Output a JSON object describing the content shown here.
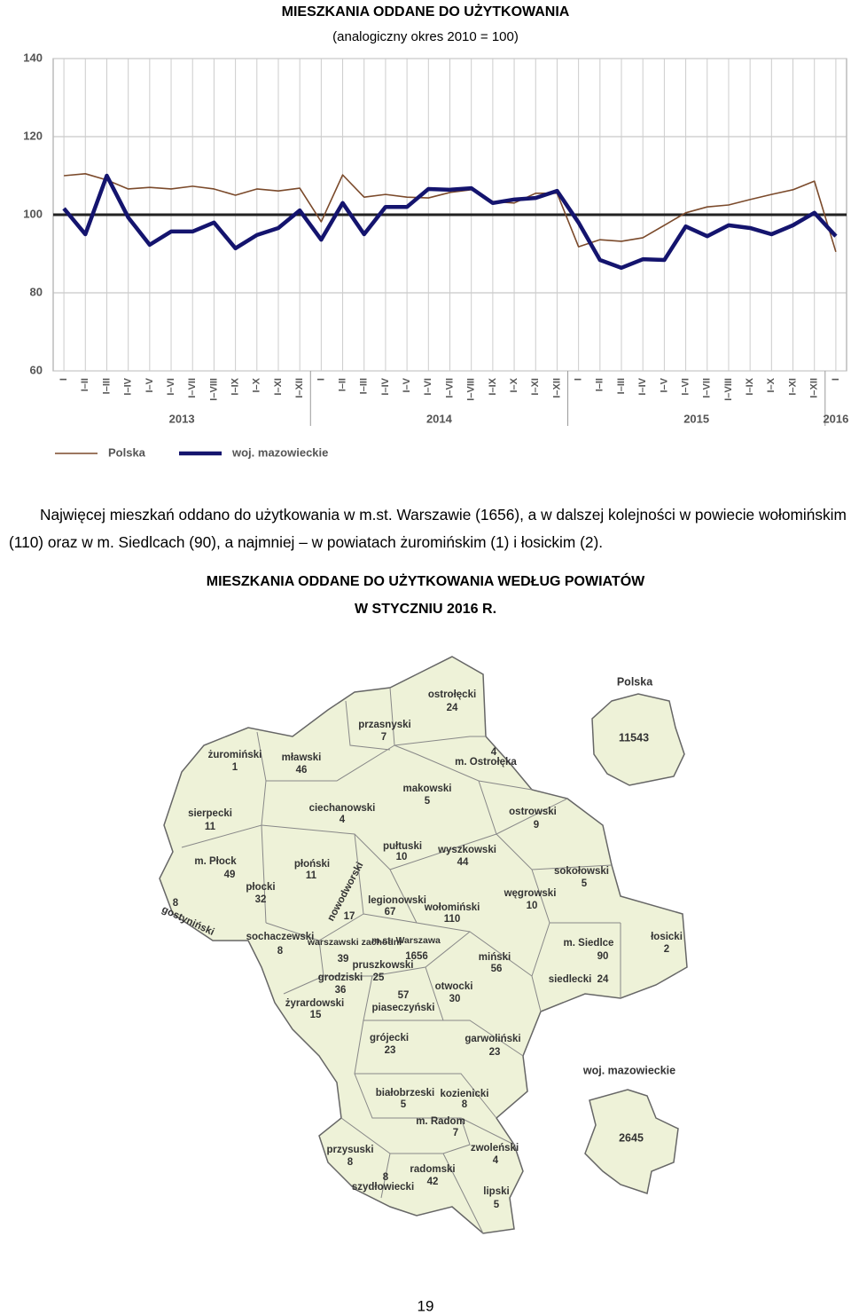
{
  "chart_data": {
    "type": "line",
    "title": "MIESZKANIA  ODDANE  DO  UŻYTKOWANIA",
    "subtitle": "(analogiczny okres 2010 = 100)",
    "categories": [
      "I",
      "I–II",
      "I–III",
      "I–IV",
      "I–V",
      "I–VI",
      "I–VII",
      "I–VIII",
      "I–IX",
      "I–X",
      "I–XI",
      "I–XII",
      "I",
      "I–II",
      "I–III",
      "I–IV",
      "I–V",
      "I–VI",
      "I–VII",
      "I–VIII",
      "I–IX",
      "I–X",
      "I–XI",
      "I–XII",
      "I",
      "I–II",
      "I–III",
      "I–IV",
      "I–V",
      "I–VI",
      "I–VII",
      "I–VIII",
      "I–IX",
      "I–X",
      "I–XI",
      "I–XII",
      "I"
    ],
    "year_labels": [
      "2013",
      "2014",
      "2015",
      "2016"
    ],
    "series": [
      {
        "name": "Polska",
        "color": "#7b4a2b",
        "values": [
          110,
          110.5,
          108.9,
          106.6,
          107,
          106.6,
          107.3,
          106.6,
          105,
          106.6,
          106.1,
          106.8,
          98.2,
          110.2,
          104.5,
          105.2,
          104.5,
          104.3,
          105.7,
          106.4,
          103.4,
          103,
          105.5,
          105.5,
          91.8,
          93.6,
          93.2,
          94.1,
          97.3,
          100.5,
          102,
          102.5,
          103.9,
          105.2,
          106.4,
          108.6,
          90.5
        ]
      },
      {
        "name": "woj. mazowieckie",
        "color": "#14146e",
        "values": [
          101.6,
          95,
          110,
          99.3,
          92.3,
          95.7,
          95.7,
          98,
          91.4,
          94.8,
          96.6,
          101.1,
          93.6,
          103,
          95,
          102,
          102,
          106.6,
          106.4,
          106.8,
          103,
          103.9,
          104.3,
          106.1,
          98,
          88.4,
          86.4,
          88.6,
          88.4,
          97,
          94.5,
          97.3,
          96.6,
          95,
          97.3,
          100.5,
          94.5
        ]
      }
    ],
    "reference_line": 100,
    "ylim": [
      60,
      140
    ],
    "yticks": [
      60,
      80,
      100,
      120,
      140
    ],
    "grid": true,
    "legend": "bottom"
  },
  "paragraph": "Najwięcej mieszkań oddano do użytkowania w m.st. Warszawie (1656), a w dalszej kolejności w powiecie wołomińskim (110) oraz w m. Siedlcach (90), a najmniej – w powiatach żuromińskim (1) i łosickim (2).",
  "map": {
    "title": [
      "MIESZKANIA  ODDANE  DO  UŻYTKOWANIA  WEDŁUG  POWIATÓW",
      "W  STYCZNIU  2016  R."
    ],
    "districts": [
      {
        "name": "ostrołęcki",
        "value": 24
      },
      {
        "name": "przasnyski",
        "value": 7
      },
      {
        "name": "żuromiński",
        "value": 1
      },
      {
        "name": "mławski",
        "value": 46
      },
      {
        "name": "m. Ostrołęka",
        "value": 4
      },
      {
        "name": "makowski",
        "value": 5
      },
      {
        "name": "ciechanowski",
        "value": 4
      },
      {
        "name": "sierpecki",
        "value": 11
      },
      {
        "name": "ostrowski",
        "value": 9
      },
      {
        "name": "pułtuski",
        "value": 10
      },
      {
        "name": "wyszkowski",
        "value": 44
      },
      {
        "name": "m. Płock",
        "value": 49
      },
      {
        "name": "płoński",
        "value": 11
      },
      {
        "name": "sokołowski",
        "value": 5
      },
      {
        "name": "płocki",
        "value": 32
      },
      {
        "name": "nowodworski",
        "value": 17
      },
      {
        "name": "legionowski",
        "value": 67
      },
      {
        "name": "wołomiński",
        "value": 110
      },
      {
        "name": "węgrowski",
        "value": 10
      },
      {
        "name": "gostyniński",
        "value": 8
      },
      {
        "name": "sochaczewski",
        "value": 8
      },
      {
        "name": "warszawski zachodni",
        "value": 39
      },
      {
        "name": "m.st. Warszawa",
        "value": 1656
      },
      {
        "name": "łosicki",
        "value": 2
      },
      {
        "name": "m. Siedlce",
        "value": 90
      },
      {
        "name": "miński",
        "value": 56
      },
      {
        "name": "pruszkowski",
        "value": 25
      },
      {
        "name": "grodziski",
        "value": 36
      },
      {
        "name": "siedlecki",
        "value": 24
      },
      {
        "name": "piaseczyński",
        "value": 57
      },
      {
        "name": "otwocki",
        "value": 30
      },
      {
        "name": "żyrardowski",
        "value": 15
      },
      {
        "name": "grójecki",
        "value": 23
      },
      {
        "name": "garwoliński",
        "value": 23
      },
      {
        "name": "białobrzeski",
        "value": 5
      },
      {
        "name": "kozienicki",
        "value": 8
      },
      {
        "name": "m. Radom",
        "value": 7
      },
      {
        "name": "przysuski",
        "value": 8
      },
      {
        "name": "zwoleński",
        "value": 4
      },
      {
        "name": "radomski",
        "value": 42
      },
      {
        "name": "szydłowiecki",
        "value": 8
      },
      {
        "name": "lipski",
        "value": 5
      }
    ],
    "poland": {
      "name": "Polska",
      "value": 11543
    },
    "voivodeship": {
      "name": "woj. mazowieckie",
      "value": 2645
    }
  },
  "page_number": "19"
}
